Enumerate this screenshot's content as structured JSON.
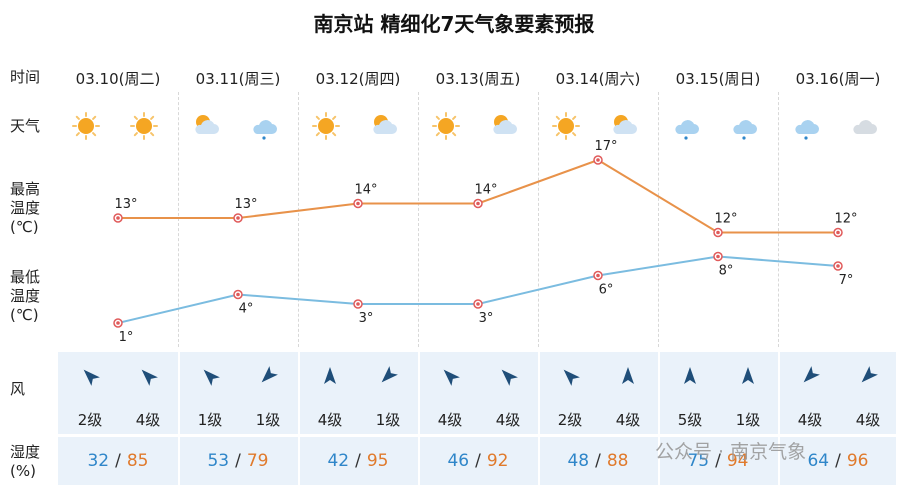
{
  "title": "南京站 精细化7天气象要素预报",
  "labels": {
    "time": "时间",
    "weather": "天气",
    "high": [
      "最高",
      "温度",
      "(℃)"
    ],
    "low": [
      "最低",
      "温度",
      "(℃)"
    ],
    "wind": "风",
    "humidity": [
      "湿度",
      "(%)"
    ]
  },
  "days": [
    {
      "date": "03.10(周二)",
      "weather": [
        "sunny-icon",
        "sunny-icon"
      ],
      "wind_dirs": [
        "northwest",
        "northwest"
      ],
      "wind_grades": [
        "2级",
        "4级"
      ],
      "hum_low": "32",
      "hum_high": "85",
      "high_label": "13°",
      "low_label": "1°"
    },
    {
      "date": "03.11(周三)",
      "weather": [
        "partly-cloudy-icon",
        "light-rain-icon"
      ],
      "wind_dirs": [
        "northwest",
        "southwest"
      ],
      "wind_grades": [
        "1级",
        "1级"
      ],
      "hum_low": "53",
      "hum_high": "79",
      "high_label": "13°",
      "low_label": "4°"
    },
    {
      "date": "03.12(周四)",
      "weather": [
        "sunny-icon",
        "partly-cloudy-icon"
      ],
      "wind_dirs": [
        "north",
        "southwest"
      ],
      "wind_grades": [
        "4级",
        "1级"
      ],
      "hum_low": "42",
      "hum_high": "95",
      "high_label": "14°",
      "low_label": "3°"
    },
    {
      "date": "03.13(周五)",
      "weather": [
        "sunny-icon",
        "partly-cloudy-icon"
      ],
      "wind_dirs": [
        "northwest",
        "northwest"
      ],
      "wind_grades": [
        "4级",
        "4级"
      ],
      "hum_low": "46",
      "hum_high": "92",
      "high_label": "14°",
      "low_label": "3°"
    },
    {
      "date": "03.14(周六)",
      "weather": [
        "sunny-icon",
        "partly-cloudy-icon"
      ],
      "wind_dirs": [
        "northwest",
        "north"
      ],
      "wind_grades": [
        "2级",
        "4级"
      ],
      "hum_low": "48",
      "hum_high": "88",
      "high_label": "17°",
      "low_label": "6°"
    },
    {
      "date": "03.15(周日)",
      "weather": [
        "light-rain-icon",
        "light-rain-icon"
      ],
      "wind_dirs": [
        "north",
        "north"
      ],
      "wind_grades": [
        "5级",
        "1级"
      ],
      "hum_low": "75",
      "hum_high": "94",
      "high_label": "12°",
      "low_label": "8°"
    },
    {
      "date": "03.16(周一)",
      "weather": [
        "light-rain-icon",
        "cloudy-icon"
      ],
      "wind_dirs": [
        "southwest",
        "southwest"
      ],
      "wind_grades": [
        "4级",
        "4级"
      ],
      "hum_low": "64",
      "hum_high": "96",
      "high_label": "12°",
      "low_label": "7°"
    }
  ],
  "watermark": "公众号 · 南京气象",
  "colors": {
    "high_line": "#e8924a",
    "low_line": "#7bbce0",
    "marker": "#e05a5a",
    "sun": "#f5a623",
    "hum_low": "#2f86c9",
    "hum_high": "#e07a2c",
    "wind_arrow": "#1f4e79"
  },
  "chart_data": {
    "type": "line",
    "title": "南京站 精细化7天气象要素预报",
    "categories": [
      "03.10(周二)",
      "03.11(周三)",
      "03.12(周四)",
      "03.13(周五)",
      "03.14(周六)",
      "03.15(周日)",
      "03.16(周一)"
    ],
    "series": [
      {
        "name": "最高温度(℃)",
        "values": [
          13,
          13,
          14,
          14,
          17,
          12,
          12
        ]
      },
      {
        "name": "最低温度(℃)",
        "values": [
          1,
          4,
          3,
          3,
          6,
          8,
          7
        ]
      }
    ],
    "humidity_low": [
      32,
      53,
      42,
      46,
      48,
      75,
      64
    ],
    "humidity_high": [
      85,
      79,
      95,
      92,
      88,
      94,
      96
    ],
    "grid": "vertical-dashed"
  }
}
